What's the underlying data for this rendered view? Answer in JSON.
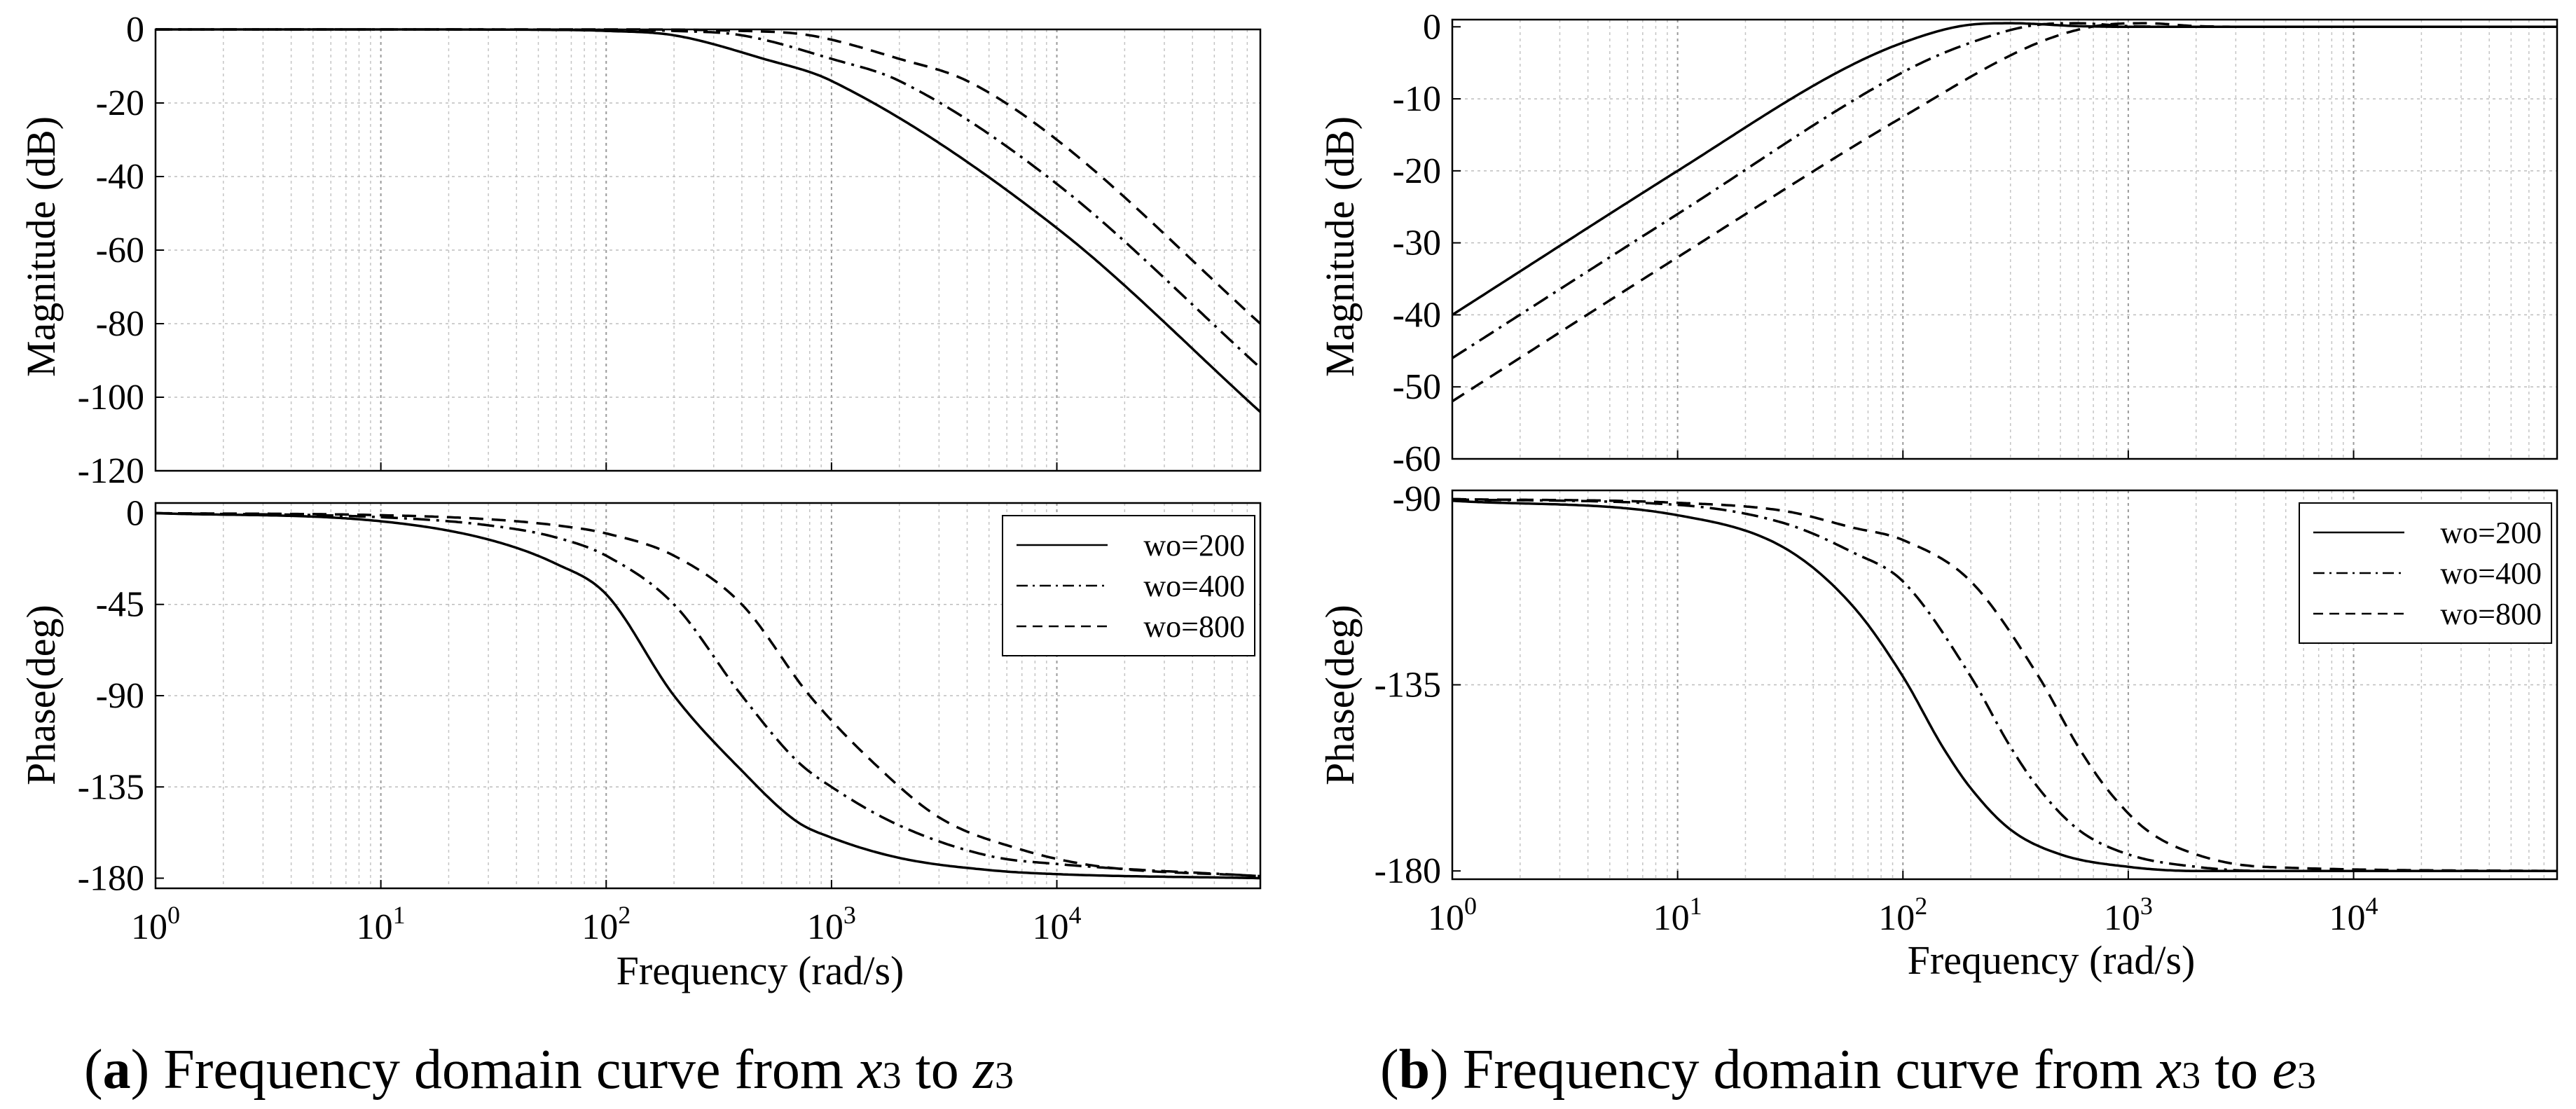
{
  "chart_data": [
    {
      "panel": "a",
      "type": "line",
      "plot": "magnitude",
      "xscale": "log",
      "xlim": [
        1,
        80000
      ],
      "xticks": [
        "10^0",
        "10^1",
        "10^2",
        "10^3",
        "10^4"
      ],
      "ylabel": "Magnitude (dB)",
      "ylim": [
        -120,
        0
      ],
      "yticks": [
        0,
        -20,
        -40,
        -60,
        -80,
        -100,
        -120
      ],
      "grid": true,
      "series": [
        {
          "name": "wo=200",
          "style": "solid",
          "x": [
            1,
            10,
            50,
            100,
            200,
            500,
            1000,
            10000,
            80000
          ],
          "y": [
            0,
            0,
            -0.1,
            -0.4,
            -1.6,
            -8.0,
            -14.0,
            -54.0,
            -104.0
          ]
        },
        {
          "name": "wo=400",
          "style": "dashdot",
          "x": [
            1,
            10,
            100,
            200,
            400,
            1000,
            2000,
            10000,
            80000
          ],
          "y": [
            0,
            0,
            -0.1,
            -0.4,
            -1.6,
            -8.0,
            -14.0,
            -42.0,
            -92.0
          ]
        },
        {
          "name": "wo=800",
          "style": "dashed",
          "x": [
            1,
            10,
            100,
            400,
            800,
            2000,
            4000,
            10000,
            80000
          ],
          "y": [
            0,
            0,
            0,
            -0.4,
            -1.6,
            -8.0,
            -14.0,
            -30.0,
            -80.0
          ]
        }
      ]
    },
    {
      "panel": "a",
      "type": "line",
      "plot": "phase",
      "xscale": "log",
      "xlim": [
        1,
        80000
      ],
      "xticks": [
        "10^0",
        "10^1",
        "10^2",
        "10^3",
        "10^4"
      ],
      "xlabel": "Frequency (rad/s)",
      "ylabel": "Phase(deg)",
      "ylim": [
        -185,
        5
      ],
      "yticks": [
        0,
        -45,
        -90,
        -135,
        -180
      ],
      "legend": "top-right",
      "grid": true,
      "series": [
        {
          "name": "wo=200",
          "style": "solid",
          "x": [
            1,
            10,
            30,
            60,
            100,
            200,
            400,
            700,
            1000,
            2000,
            5000,
            10000,
            80000
          ],
          "y": [
            0,
            -4,
            -13,
            -25,
            -40,
            -90,
            -127,
            -152,
            -160,
            -170,
            -176,
            -178,
            -180
          ]
        },
        {
          "name": "wo=400",
          "style": "dashdot",
          "x": [
            1,
            10,
            30,
            60,
            100,
            200,
            400,
            700,
            1000,
            2000,
            5000,
            10000,
            80000
          ],
          "y": [
            0,
            -2,
            -6,
            -12,
            -21,
            -45,
            -90,
            -122,
            -135,
            -154,
            -169,
            -173,
            -179
          ]
        },
        {
          "name": "wo=800",
          "style": "dashed",
          "x": [
            1,
            10,
            30,
            60,
            100,
            200,
            400,
            800,
            1500,
            3000,
            7000,
            15000,
            80000
          ],
          "y": [
            0,
            -1,
            -3,
            -6,
            -10,
            -21,
            -45,
            -90,
            -122,
            -150,
            -166,
            -174,
            -179
          ]
        }
      ]
    },
    {
      "panel": "b",
      "type": "line",
      "plot": "magnitude",
      "xscale": "log",
      "xlim": [
        1,
        80000
      ],
      "xticks": [
        "10^0",
        "10^1",
        "10^2",
        "10^3",
        "10^4"
      ],
      "ylabel": "Magnitude (dB)",
      "ylim": [
        -60,
        1
      ],
      "yticks": [
        0,
        -10,
        -20,
        -30,
        -40,
        -50,
        -60
      ],
      "grid": true,
      "series": [
        {
          "name": "wo=200",
          "style": "solid",
          "x": [
            1,
            10,
            50,
            100,
            200,
            300,
            600,
            1000,
            80000
          ],
          "y": [
            -40,
            -20,
            -6.5,
            -2.2,
            0.3,
            0.5,
            0.1,
            0,
            0
          ]
        },
        {
          "name": "wo=400",
          "style": "dashdot",
          "x": [
            1,
            10,
            100,
            200,
            400,
            600,
            1000,
            2000,
            80000
          ],
          "y": [
            -46,
            -26,
            -6.3,
            -2.2,
            0.3,
            0.5,
            0.1,
            0,
            0
          ]
        },
        {
          "name": "wo=800",
          "style": "dashed",
          "x": [
            1,
            10,
            100,
            400,
            800,
            1200,
            2000,
            4000,
            80000
          ],
          "y": [
            -52,
            -32,
            -12.5,
            -2.2,
            0.3,
            0.5,
            0.1,
            0,
            0
          ]
        }
      ]
    },
    {
      "panel": "b",
      "type": "line",
      "plot": "phase",
      "xscale": "log",
      "xlim": [
        1,
        80000
      ],
      "xticks": [
        "10^0",
        "10^1",
        "10^2",
        "10^3",
        "10^4"
      ],
      "xlabel": "Frequency (rad/s)",
      "ylabel": "Phase(deg)",
      "ylim": [
        -182,
        -88
      ],
      "yticks": [
        -90,
        -135,
        -180
      ],
      "legend": "top-right",
      "grid": true,
      "series": [
        {
          "name": "wo=200",
          "style": "solid",
          "x": [
            1,
            10,
            30,
            60,
            100,
            150,
            200,
            300,
            500,
            1000,
            2000,
            80000
          ],
          "y": [
            -90.5,
            -94,
            -102,
            -116,
            -133,
            -150,
            -160,
            -170,
            -176,
            -179,
            -180,
            -180
          ]
        },
        {
          "name": "wo=400",
          "style": "dashdot",
          "x": [
            1,
            10,
            30,
            60,
            100,
            200,
            300,
            400,
            600,
            1000,
            2000,
            4000,
            80000
          ],
          "y": [
            -90.2,
            -91.5,
            -96,
            -103,
            -110,
            -133,
            -150,
            -160,
            -170,
            -176,
            -179,
            -180,
            -180
          ]
        },
        {
          "name": "wo=800",
          "style": "dashed",
          "x": [
            1,
            10,
            30,
            60,
            100,
            200,
            400,
            600,
            800,
            1200,
            2000,
            4000,
            80000
          ],
          "y": [
            -90.1,
            -91,
            -93,
            -97,
            -100,
            -110,
            -133,
            -150,
            -160,
            -170,
            -176,
            -179,
            -180
          ]
        }
      ]
    }
  ],
  "legend": {
    "entries": [
      "wo=200",
      "wo=400",
      "wo=800"
    ]
  },
  "captions": [
    {
      "label": "a",
      "text": "Frequency domain curve from",
      "from_var": "x",
      "from_sub": "3",
      "connector": "to",
      "to_var": "z",
      "to_sub": "3"
    },
    {
      "label": "b",
      "text": "Frequency domain curve from",
      "from_var": "x",
      "from_sub": "3",
      "connector": "to",
      "to_var": "e",
      "to_sub": "3"
    }
  ]
}
